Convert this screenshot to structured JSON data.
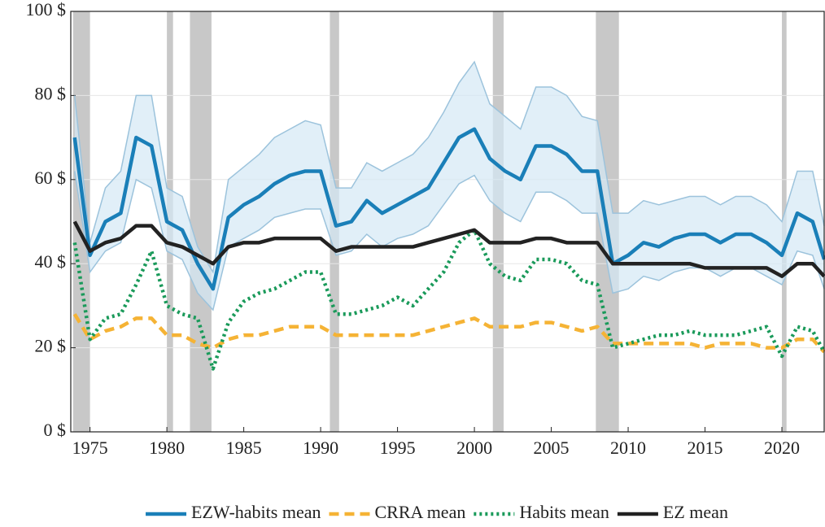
{
  "chart_data": {
    "type": "line",
    "x": [
      1974,
      1975,
      1976,
      1977,
      1978,
      1979,
      1980,
      1981,
      1982,
      1983,
      1984,
      1985,
      1986,
      1987,
      1988,
      1989,
      1990,
      1991,
      1992,
      1993,
      1994,
      1995,
      1996,
      1997,
      1998,
      1999,
      2000,
      2001,
      2002,
      2003,
      2004,
      2005,
      2006,
      2007,
      2008,
      2009,
      2010,
      2011,
      2012,
      2013,
      2014,
      2015,
      2016,
      2017,
      2018,
      2019,
      2020,
      2021,
      2022,
      2022.75
    ],
    "series": [
      {
        "name": "EZW-habits mean",
        "color": "#1a7fb8",
        "style": "solid",
        "values": [
          70,
          42,
          50,
          52,
          70,
          68,
          50,
          48,
          40,
          34,
          51,
          54,
          56,
          59,
          61,
          62,
          62,
          49,
          50,
          55,
          52,
          54,
          56,
          58,
          64,
          70,
          72,
          65,
          62,
          60,
          68,
          68,
          66,
          62,
          62,
          40,
          42,
          45,
          44,
          46,
          47,
          47,
          45,
          47,
          47,
          45,
          42,
          52,
          50,
          41
        ]
      },
      {
        "name": "CRRA mean",
        "color": "#f5b335",
        "style": "dashed",
        "values": [
          28,
          22,
          24,
          25,
          27,
          27,
          23,
          23,
          21,
          20,
          22,
          23,
          23,
          24,
          25,
          25,
          25,
          23,
          23,
          23,
          23,
          23,
          23,
          24,
          25,
          26,
          27,
          25,
          25,
          25,
          26,
          26,
          25,
          24,
          25,
          21,
          21,
          21,
          21,
          21,
          21,
          20,
          21,
          21,
          21,
          20,
          20,
          22,
          22,
          19
        ]
      },
      {
        "name": "Habits mean",
        "color": "#1a9a5a",
        "style": "dotted",
        "values": [
          45,
          22,
          27,
          28,
          35,
          43,
          30,
          28,
          27,
          15,
          26,
          31,
          33,
          34,
          36,
          38,
          38,
          28,
          28,
          29,
          30,
          32,
          30,
          34,
          38,
          45,
          48,
          40,
          37,
          36,
          41,
          41,
          40,
          36,
          35,
          20,
          21,
          22,
          23,
          23,
          24,
          23,
          23,
          23,
          24,
          25,
          18,
          25,
          24,
          19
        ]
      },
      {
        "name": "EZ mean",
        "color": "#222222",
        "style": "solid",
        "values": [
          50,
          43,
          45,
          46,
          49,
          49,
          45,
          44,
          42,
          40,
          44,
          45,
          45,
          46,
          46,
          46,
          46,
          43,
          44,
          44,
          44,
          44,
          44,
          45,
          46,
          47,
          48,
          45,
          45,
          45,
          46,
          46,
          45,
          45,
          45,
          40,
          40,
          40,
          40,
          40,
          40,
          39,
          39,
          39,
          39,
          39,
          37,
          40,
          40,
          37
        ]
      }
    ],
    "band": {
      "color": "#d4e8f5",
      "upper": [
        80,
        45,
        58,
        62,
        80,
        80,
        58,
        56,
        44,
        38,
        60,
        63,
        66,
        70,
        72,
        74,
        73,
        58,
        58,
        64,
        62,
        64,
        66,
        70,
        76,
        83,
        88,
        78,
        75,
        72,
        82,
        82,
        80,
        75,
        74,
        52,
        52,
        55,
        54,
        55,
        56,
        56,
        54,
        56,
        56,
        54,
        50,
        62,
        62,
        49
      ],
      "lower": [
        62,
        38,
        43,
        45,
        60,
        58,
        43,
        41,
        33,
        29,
        44,
        46,
        48,
        51,
        52,
        53,
        53,
        42,
        43,
        47,
        44,
        46,
        47,
        49,
        54,
        59,
        61,
        55,
        52,
        50,
        57,
        57,
        55,
        52,
        52,
        33,
        34,
        37,
        36,
        38,
        39,
        39,
        37,
        39,
        39,
        37,
        35,
        43,
        42,
        34
      ]
    },
    "shaded_periods": [
      [
        1973.9,
        1975.0
      ],
      [
        1980.0,
        1980.4
      ],
      [
        1981.5,
        1982.9
      ],
      [
        1990.6,
        1991.2
      ],
      [
        2001.2,
        2001.9
      ],
      [
        2007.9,
        2009.4
      ],
      [
        2020.0,
        2020.3
      ]
    ],
    "shade_color": "#c8c8c8",
    "xlim": [
      1973.75,
      2022.75
    ],
    "ylim": [
      0,
      100
    ],
    "xticks": [
      1975,
      1980,
      1985,
      1990,
      1995,
      2000,
      2005,
      2010,
      2015,
      2020
    ],
    "yticks": [
      {
        "value": 0,
        "label": "0 $"
      },
      {
        "value": 20,
        "label": "20 $"
      },
      {
        "value": 40,
        "label": "40 $"
      },
      {
        "value": 60,
        "label": "60 $"
      },
      {
        "value": 80,
        "label": "80 $"
      },
      {
        "value": 100,
        "label": "100 $"
      }
    ],
    "grid": true,
    "legend": "bottom"
  }
}
